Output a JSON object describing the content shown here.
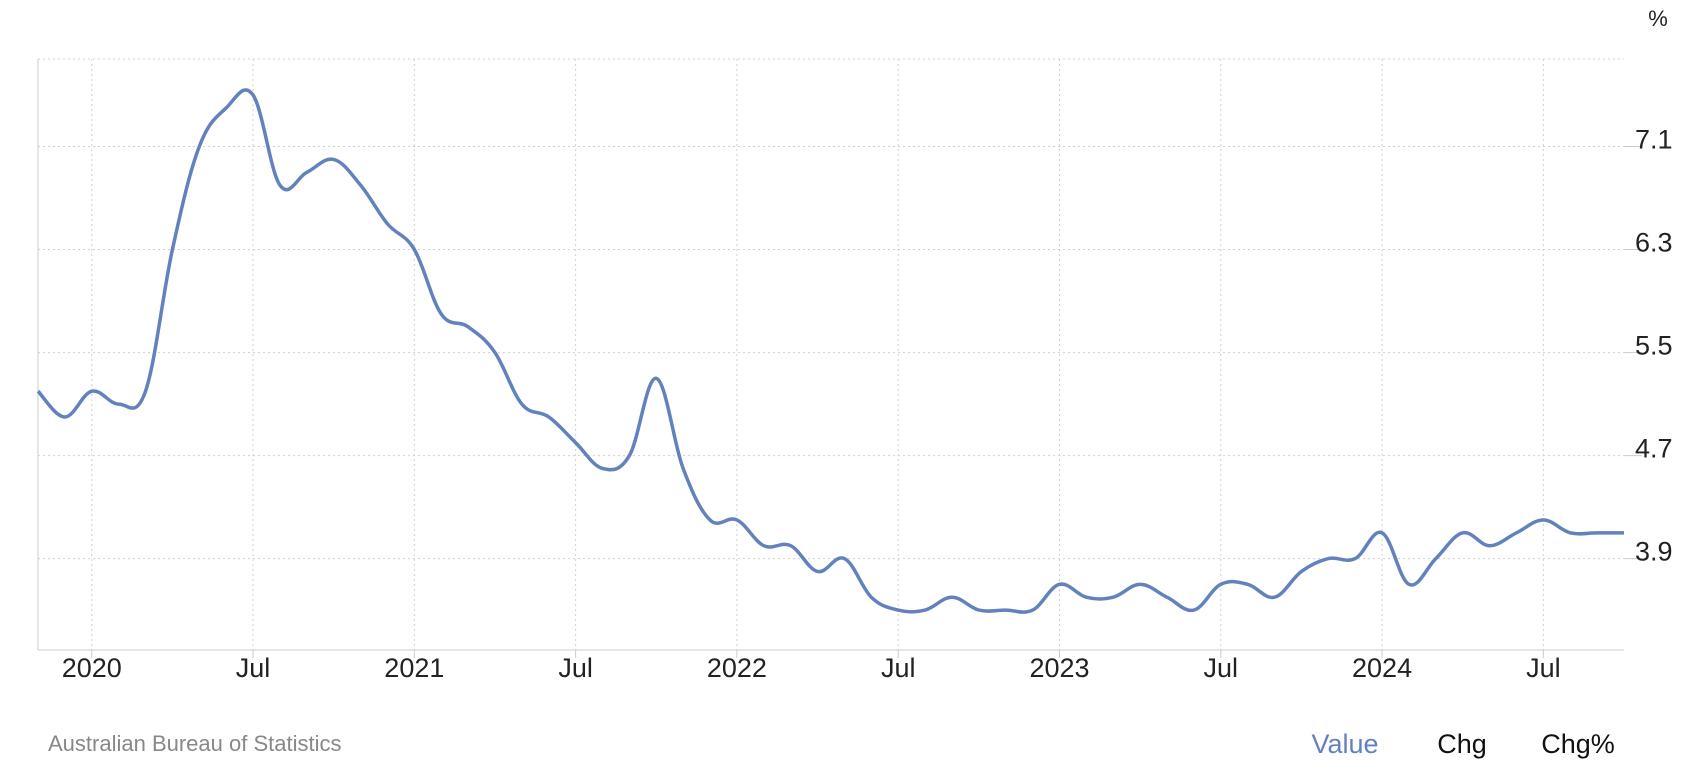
{
  "chart_data": {
    "type": "line",
    "y_unit": "%",
    "source": "Australian Bureau of Statistics",
    "tabs": [
      "Value",
      "Chg",
      "Chg%"
    ],
    "active_tab": 0,
    "color": "#6382bd",
    "categories": [
      null,
      null,
      "2020",
      null,
      null,
      null,
      null,
      null,
      "Jul",
      null,
      null,
      null,
      null,
      null,
      "2021",
      null,
      null,
      null,
      null,
      null,
      "Jul",
      null,
      null,
      null,
      null,
      null,
      "2022",
      null,
      null,
      null,
      null,
      null,
      "Jul",
      null,
      null,
      null,
      null,
      null,
      "2023",
      null,
      null,
      null,
      null,
      null,
      "Jul",
      null,
      null,
      null,
      null,
      null,
      "2024",
      null,
      null,
      null,
      null,
      null,
      "Jul",
      null,
      null,
      null
    ],
    "values": [
      5.2,
      5.0,
      5.2,
      5.1,
      5.2,
      6.3,
      7.1,
      7.4,
      7.5,
      6.8,
      6.9,
      7.0,
      6.8,
      6.5,
      6.3,
      5.8,
      5.7,
      5.5,
      5.1,
      5.0,
      4.8,
      4.6,
      4.7,
      5.3,
      4.6,
      4.2,
      4.2,
      4.0,
      4.0,
      3.8,
      3.9,
      3.6,
      3.5,
      3.5,
      3.6,
      3.5,
      3.5,
      3.5,
      3.7,
      3.6,
      3.6,
      3.7,
      3.6,
      3.5,
      3.7,
      3.7,
      3.6,
      3.8,
      3.9,
      3.9,
      4.1,
      3.7,
      3.9,
      4.1,
      4.0,
      4.1,
      4.2,
      4.1,
      4.1,
      4.1
    ],
    "ylim": [
      3.19,
      7.78
    ],
    "yticks": [
      3.9,
      4.7,
      5.5,
      6.3,
      7.1
    ],
    "grid": true
  }
}
